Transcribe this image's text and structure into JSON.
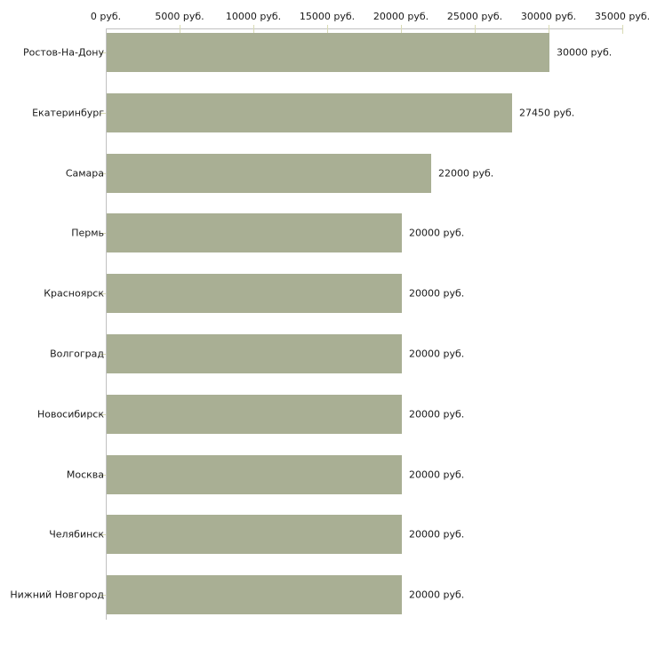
{
  "chart_data": {
    "type": "bar",
    "orientation": "horizontal",
    "title": "",
    "categories": [
      "Ростов-На-Дону",
      "Екатеринбург",
      "Самара",
      "Пермь",
      "Красноярск",
      "Волгоград",
      "Новосибирск",
      "Москва",
      "Челябинск",
      "Нижний Новгород"
    ],
    "values": [
      30000,
      27450,
      22000,
      20000,
      20000,
      20000,
      20000,
      20000,
      20000,
      20000
    ],
    "value_labels": [
      "30000 руб.",
      "27450 руб.",
      "22000 руб.",
      "20000 руб.",
      "20000 руб.",
      "20000 руб.",
      "20000 руб.",
      "20000 руб.",
      "20000 руб.",
      "20000 руб."
    ],
    "x_axis": {
      "position": "top",
      "min": 0,
      "max": 35000,
      "tick_values": [
        0,
        5000,
        10000,
        15000,
        20000,
        25000,
        30000,
        35000
      ],
      "tick_labels": [
        "0 руб.",
        "5000 руб.",
        "10000 руб.",
        "15000 руб.",
        "20000 руб.",
        "25000 руб.",
        "30000 руб.",
        "35000 руб."
      ]
    },
    "grid": false,
    "legend": null,
    "colors": {
      "bar": "#a9af94",
      "axis": "#c1c1c1",
      "tick": "#d9dbb4",
      "text": "#1a1a1a",
      "background": "#ffffff"
    }
  }
}
